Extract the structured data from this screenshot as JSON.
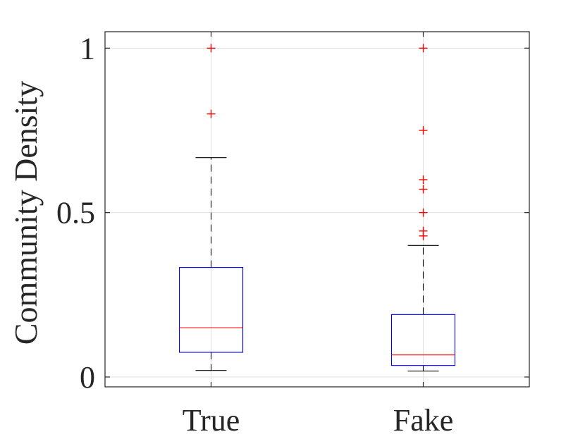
{
  "chart_data": {
    "type": "boxplot",
    "title": "",
    "xlabel": "",
    "ylabel": "Community Density",
    "ylim": [
      -0.03,
      1.05
    ],
    "yticks": [
      0,
      0.5,
      1
    ],
    "ytick_labels": [
      "0",
      "0.5",
      "1"
    ],
    "categories": [
      "True",
      "Fake"
    ],
    "grid": true,
    "boxes": [
      {
        "category": "True",
        "whisker_low": 0.02,
        "q1": 0.075,
        "median": 0.15,
        "q3": 0.333,
        "whisker_high": 0.667,
        "outliers": [
          0.8,
          1.0
        ]
      },
      {
        "category": "Fake",
        "whisker_low": 0.018,
        "q1": 0.035,
        "median": 0.067,
        "q3": 0.19,
        "whisker_high": 0.4,
        "outliers": [
          0.429,
          0.444,
          0.5,
          0.571,
          0.6,
          0.75,
          1.0
        ]
      }
    ],
    "colors": {
      "box": "#0000ff",
      "median": "#ff0000",
      "whisker": "#000000",
      "outlier": "#ff0000",
      "axes": "#262626",
      "grid": "#dfdfdf"
    }
  }
}
